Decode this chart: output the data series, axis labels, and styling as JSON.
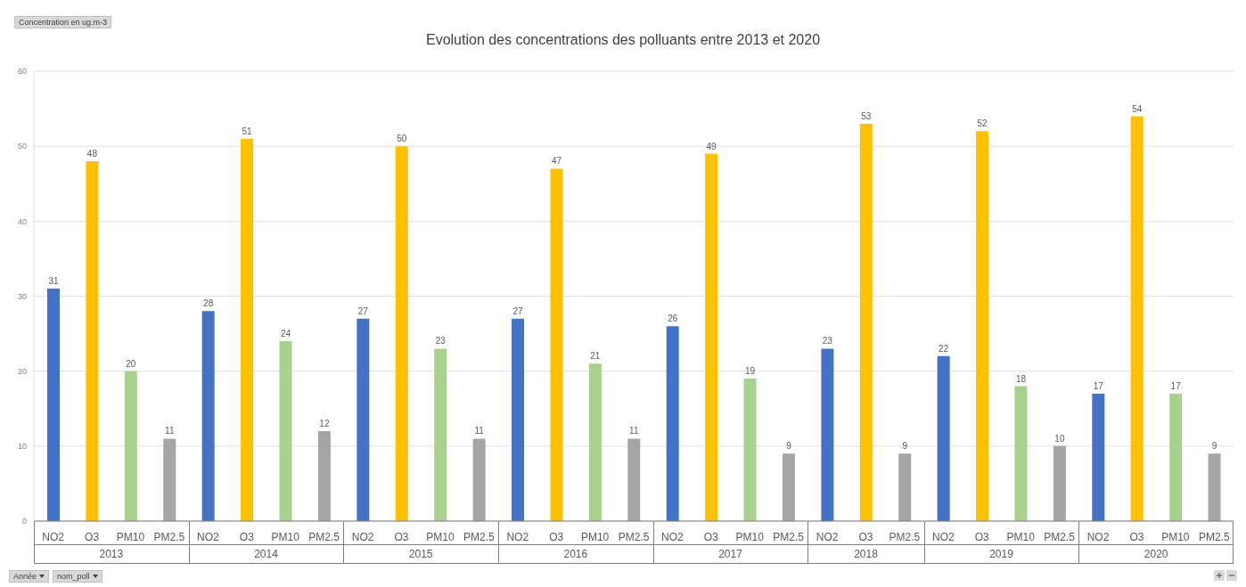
{
  "chart_data": {
    "type": "bar",
    "title": "Evolution des concentrations des polluants entre 2013 et 2020",
    "categories": [
      "2013",
      "2014",
      "2015",
      "2016",
      "2017",
      "2018",
      "2019",
      "2020"
    ],
    "series": [
      {
        "name": "NO2",
        "color": "#4472c4",
        "values": [
          31,
          28,
          27,
          27,
          26,
          23,
          22,
          17
        ]
      },
      {
        "name": "O3",
        "color": "#ffc000",
        "values": [
          48,
          51,
          50,
          47,
          49,
          53,
          52,
          54
        ]
      },
      {
        "name": "PM10",
        "color": "#a9d18e",
        "values": [
          20,
          24,
          23,
          21,
          19,
          null,
          18,
          17
        ]
      },
      {
        "name": "PM2.5",
        "color": "#a5a5a5",
        "values": [
          11,
          12,
          11,
          11,
          9,
          9,
          10,
          9
        ]
      }
    ],
    "ylim": [
      0,
      60
    ],
    "yticks": [
      0,
      10,
      20,
      30,
      40,
      50,
      60
    ],
    "grid": "y",
    "data_labels": true,
    "annotations": [
      "Concentration en ug.m-3",
      "Année",
      "nom_poll"
    ]
  }
}
